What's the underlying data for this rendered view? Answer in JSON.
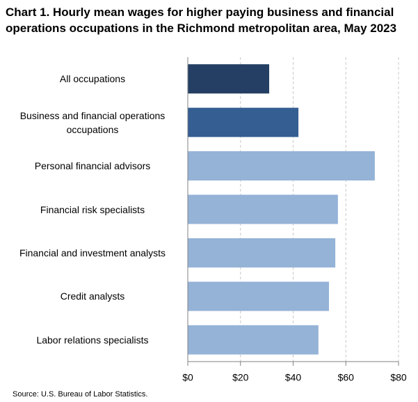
{
  "chart_data": {
    "type": "barh",
    "title": "Chart 1. Hourly mean wages for higher paying business and financial operations occupations in the Richmond metropolitan area, May 2023",
    "categories": [
      "All occupations",
      "Business and financial operations occupations",
      "Personal financial advisors",
      "Financial risk specialists",
      "Financial and investment analysts",
      "Credit analysts",
      "Labor relations specialists"
    ],
    "values": [
      30.9,
      42.0,
      71.0,
      57.0,
      56.0,
      53.6,
      49.6
    ],
    "colors": [
      "#243f63",
      "#355e92",
      "#95b3d7",
      "#95b3d7",
      "#95b3d7",
      "#95b3d7",
      "#95b3d7"
    ],
    "xlim": [
      0,
      80
    ],
    "xticks": [
      {
        "value": 0,
        "label": "$0"
      },
      {
        "value": 20,
        "label": "$20"
      },
      {
        "value": 40,
        "label": "$40"
      },
      {
        "value": 60,
        "label": "$60"
      },
      {
        "value": 80,
        "label": "$80"
      }
    ],
    "grid": true,
    "source": "Source: U.S. Bureau of Labor Statistics."
  }
}
